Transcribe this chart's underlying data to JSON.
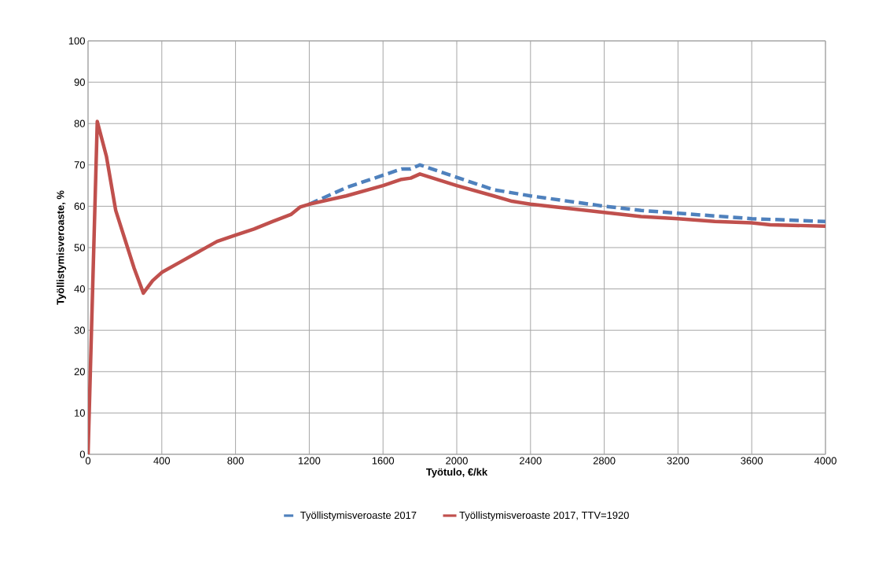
{
  "chart_data": {
    "type": "line",
    "xlabel": "Työtulo, €/kk",
    "ylabel": "Työllistymisveroaste, %",
    "xlim": [
      0,
      4000
    ],
    "xticks": [
      0,
      400,
      800,
      1200,
      1600,
      2000,
      2400,
      2800,
      3200,
      3600,
      4000
    ],
    "ylim": [
      0,
      100
    ],
    "yticks": [
      0,
      10,
      20,
      30,
      40,
      50,
      60,
      70,
      80,
      90,
      100
    ],
    "grid": true,
    "legend": "bottom",
    "marker": "none",
    "series": [
      {
        "name": "Työllistymisveroaste 2017",
        "color": "#4f81bd",
        "line_style": "dashed",
        "x": [
          1200,
          1400,
          1600,
          1700,
          1750,
          1800,
          2000,
          2200,
          2400,
          2800,
          3000,
          3200,
          3600,
          4000
        ],
        "values": [
          60.5,
          64.5,
          67.5,
          69,
          69,
          70,
          67,
          64,
          62.5,
          60,
          59,
          58.3,
          57,
          56.3
        ]
      },
      {
        "name": "Työllistymisveroaste 2017, TTV=1920",
        "color": "#c0504d",
        "line_style": "solid",
        "x": [
          0,
          50,
          100,
          150,
          200,
          250,
          300,
          350,
          400,
          500,
          600,
          700,
          800,
          900,
          1000,
          1100,
          1150,
          1200,
          1400,
          1600,
          1700,
          1750,
          1800,
          2000,
          2200,
          2300,
          2400,
          2600,
          2800,
          3000,
          3200,
          3400,
          3600,
          3700,
          4000
        ],
        "values": [
          0,
          80.5,
          72,
          59,
          52,
          45,
          39,
          42,
          44,
          46.5,
          49,
          51.5,
          53,
          54.5,
          56.3,
          58,
          59.8,
          60.5,
          62.5,
          65,
          66.5,
          66.8,
          67.8,
          65,
          62.5,
          61.2,
          60.5,
          59.5,
          58.5,
          57.5,
          57,
          56.3,
          56,
          55.5,
          55.2
        ]
      }
    ]
  }
}
